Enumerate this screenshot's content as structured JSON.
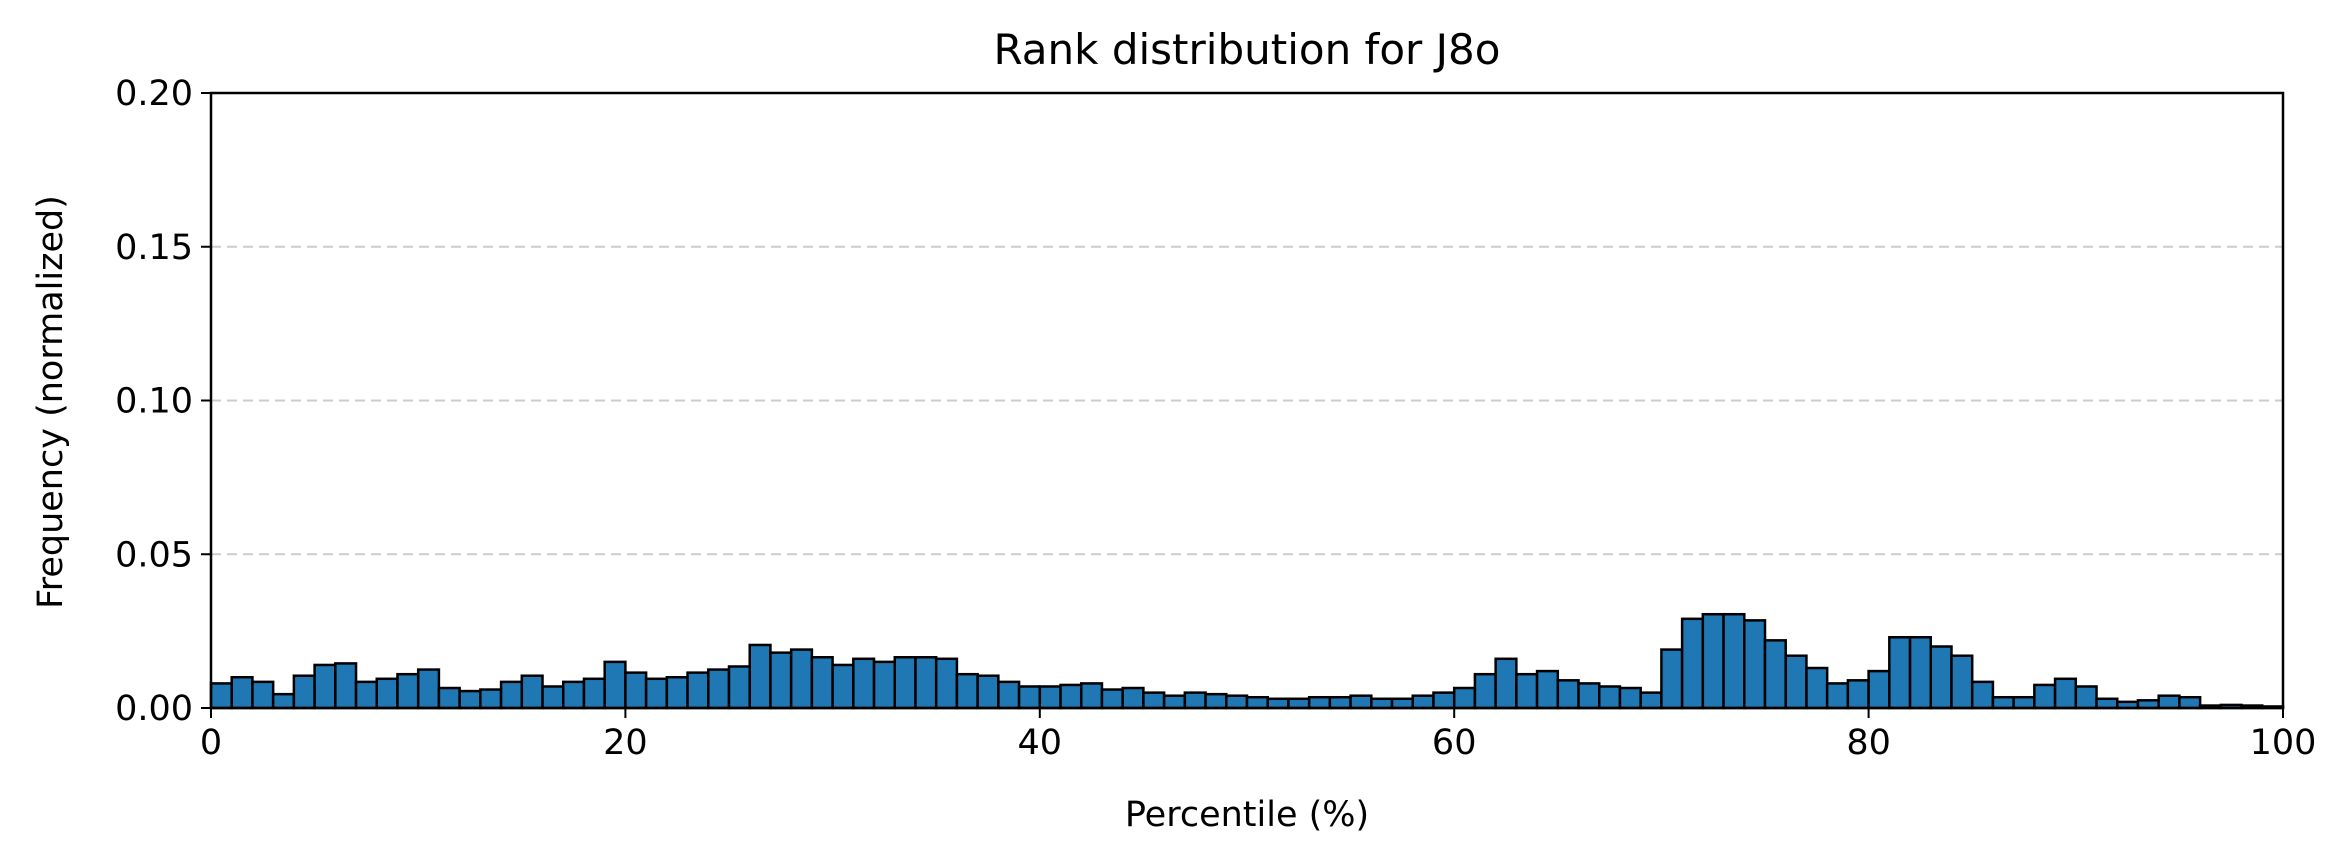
{
  "chart_data": {
    "type": "bar",
    "title": "Rank distribution for J8o",
    "xlabel": "Percentile (%)",
    "ylabel": "Frequency (normalized)",
    "xlim": [
      0,
      100
    ],
    "ylim": [
      0,
      0.2
    ],
    "xticks": [
      0,
      20,
      40,
      60,
      80,
      100
    ],
    "xtick_labels": [
      "0",
      "20",
      "40",
      "60",
      "80",
      "100"
    ],
    "yticks": [
      0,
      0.05,
      0.1,
      0.15,
      0.2
    ],
    "ytick_labels": [
      "0.00",
      "0.05",
      "0.10",
      "0.15",
      "0.20"
    ],
    "grid": {
      "axis": "y",
      "style": "dashed",
      "color": "#cccccc"
    },
    "bar_color": "#1f77b4",
    "edge_color": "#000000",
    "bin_width": 1,
    "bin_edges_start": 0,
    "values": [
      0.008,
      0.01,
      0.0085,
      0.0045,
      0.0105,
      0.014,
      0.0145,
      0.0085,
      0.0095,
      0.011,
      0.0125,
      0.0065,
      0.0055,
      0.006,
      0.0085,
      0.0105,
      0.007,
      0.0085,
      0.0095,
      0.015,
      0.0115,
      0.0095,
      0.01,
      0.0115,
      0.0125,
      0.0135,
      0.0205,
      0.018,
      0.019,
      0.0165,
      0.014,
      0.016,
      0.015,
      0.0165,
      0.0165,
      0.016,
      0.011,
      0.0105,
      0.0085,
      0.007,
      0.007,
      0.0075,
      0.008,
      0.006,
      0.0065,
      0.005,
      0.004,
      0.005,
      0.0045,
      0.004,
      0.0035,
      0.003,
      0.003,
      0.0035,
      0.0035,
      0.004,
      0.003,
      0.003,
      0.004,
      0.005,
      0.0065,
      0.011,
      0.016,
      0.011,
      0.012,
      0.009,
      0.008,
      0.007,
      0.0065,
      0.005,
      0.019,
      0.029,
      0.0305,
      0.0305,
      0.0285,
      0.022,
      0.017,
      0.013,
      0.008,
      0.009,
      0.012,
      0.023,
      0.023,
      0.02,
      0.017,
      0.0085,
      0.0035,
      0.0035,
      0.0075,
      0.0095,
      0.007,
      0.003,
      0.002,
      0.0025,
      0.004,
      0.0035,
      0.0008,
      0.001,
      0.0008,
      0.0005
    ]
  }
}
